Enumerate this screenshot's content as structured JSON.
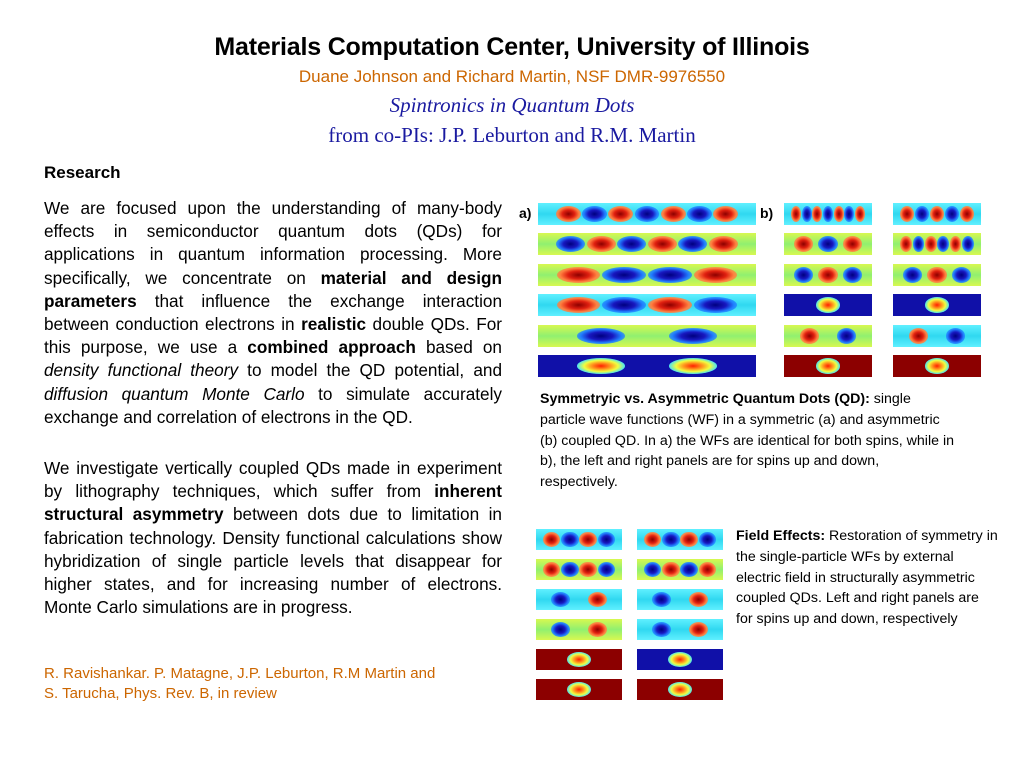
{
  "header": {
    "title": "Materials Computation Center, University of Illinois",
    "authors": "Duane Johnson and Richard Martin, NSF DMR-9976550",
    "subtitle": "Spintronics in Quantum Dots",
    "subtitle2": "from co-PIs: J.P. Leburton and R.M. Martin"
  },
  "research": {
    "heading": "Research",
    "para1": [
      {
        "t": "We are focused upon the understanding of many-body effects in semiconductor quantum dots (QDs) for applications in quantum information processing. More specifically, we concentrate on  "
      },
      {
        "t": "material and design parameters",
        "s": "b"
      },
      {
        "t": " that influence the exchange interaction between conduction electrons in "
      },
      {
        "t": "realistic",
        "s": "b"
      },
      {
        "t": " double QDs. For this purpose, we use a "
      },
      {
        "t": "combined approach",
        "s": "b"
      },
      {
        "t": " based on "
      },
      {
        "t": "density functional theory",
        "s": "i"
      },
      {
        "t": " to model the QD potential, and "
      },
      {
        "t": "diffusion quantum Monte Carlo",
        "s": "i"
      },
      {
        "t": " to simulate accurately exchange and correlation of electrons in the QD."
      }
    ],
    "para2": [
      {
        "t": "We investigate vertically coupled QDs made in experiment by lithography techniques, which suffer from "
      },
      {
        "t": "inherent structural asymmetry",
        "s": "b"
      },
      {
        "t": " between dots due to limitation in fabrication technology. Density functional calculations show hybridization of single particle levels that disappear for higher states, and for increasing number of electrons. Monte Carlo simulations are in progress."
      }
    ]
  },
  "reference": {
    "line1": "R. Ravishankar. P. Matagne, J.P. Leburton, R.M Martin and",
    "line2": "S. Tarucha, Phys. Rev. B, in review"
  },
  "figure1": {
    "label_a": "a)",
    "label_b": "b)",
    "caption_bold": "Symmetryic vs. Asymmetric Quantum Dots (QD):",
    "caption_rest": " single particle wave functions (WF) in a symmetric (a) and asymmetric (b) coupled QD. In a) the WFs are identical for both spins, while in b), the left and right panels are for  spins up and down, respectively."
  },
  "figure2": {
    "caption_bold": "Field Effects:",
    "caption_rest": " Restoration of symmetry in the single-particle WFs by external electric field in structurally asymmetric coupled QDs. Left and right panels are for spins up and down, respectively"
  },
  "colors": {
    "authors": "#cc6600",
    "subtitle": "#1a1aa0",
    "reference": "#cc6600",
    "wf_red": "#e02010",
    "wf_blue": "#1818c0",
    "wf_cyan": "#30d0f0",
    "wf_green": "#a0f060",
    "wf_yellow": "#e8f040",
    "wf_darkred": "#8c0000",
    "wf_darkblue": "#1010a8"
  },
  "chart_data": {
    "type": "heatmap",
    "colormap": "jet",
    "panels": [
      {
        "name": "a",
        "rows": 6,
        "cols": 1
      },
      {
        "name": "b-left",
        "rows": 6,
        "cols": 1
      },
      {
        "name": "b-right",
        "rows": 6,
        "cols": 1
      },
      {
        "name": "field-left",
        "rows": 6,
        "cols": 1
      },
      {
        "name": "field-right",
        "rows": 6,
        "cols": 1
      }
    ],
    "wavefunctions": {
      "a": [
        {
          "bg": "cyan",
          "lobes": [
            "r",
            "b",
            "r",
            "b",
            "r",
            "b",
            "r"
          ]
        },
        {
          "bg": "green",
          "lobes": [
            "b",
            "r",
            "b",
            "r",
            "b",
            "r"
          ]
        },
        {
          "bg": "green",
          "lobes": [
            "r",
            "b",
            "b",
            "r"
          ]
        },
        {
          "bg": "cyan",
          "lobes": [
            "r",
            "b",
            "r",
            "b"
          ]
        },
        {
          "bg": "green",
          "lobes": [
            "b",
            "b"
          ]
        },
        {
          "bg": "blue",
          "lobes": [
            "y",
            "y"
          ]
        }
      ],
      "b-left": [
        {
          "bg": "cyan",
          "lobes": [
            "r",
            "b",
            "r",
            "b",
            "r",
            "b",
            "r"
          ]
        },
        {
          "bg": "green",
          "lobes": [
            "r",
            "b",
            "r"
          ]
        },
        {
          "bg": "green",
          "lobes": [
            "b",
            "r",
            "b"
          ]
        },
        {
          "bg": "blue",
          "lobes": [
            "y"
          ]
        },
        {
          "bg": "green",
          "lobes": [
            "r",
            "b"
          ]
        },
        {
          "bg": "darkred",
          "lobes": [
            "y"
          ]
        }
      ],
      "b-right": [
        {
          "bg": "cyan",
          "lobes": [
            "r",
            "b",
            "r",
            "b",
            "r"
          ]
        },
        {
          "bg": "green",
          "lobes": [
            "r",
            "b",
            "r",
            "b",
            "r",
            "b"
          ]
        },
        {
          "bg": "green",
          "lobes": [
            "b",
            "r",
            "b"
          ]
        },
        {
          "bg": "blue",
          "lobes": [
            "y"
          ]
        },
        {
          "bg": "cyan",
          "lobes": [
            "r",
            "b"
          ]
        },
        {
          "bg": "darkred",
          "lobes": [
            "y"
          ]
        }
      ],
      "field-left": [
        {
          "bg": "cyan",
          "lobes": [
            "r",
            "b",
            "r",
            "b"
          ]
        },
        {
          "bg": "green",
          "lobes": [
            "r",
            "b",
            "r",
            "b"
          ]
        },
        {
          "bg": "cyan",
          "lobes": [
            "b",
            "r"
          ]
        },
        {
          "bg": "green",
          "lobes": [
            "b",
            "r"
          ]
        },
        {
          "bg": "darkred",
          "lobes": [
            "y"
          ]
        },
        {
          "bg": "darkred",
          "lobes": [
            "y"
          ]
        }
      ],
      "field-right": [
        {
          "bg": "cyan",
          "lobes": [
            "r",
            "b",
            "r",
            "b"
          ]
        },
        {
          "bg": "green",
          "lobes": [
            "b",
            "r",
            "b",
            "r"
          ]
        },
        {
          "bg": "cyan",
          "lobes": [
            "b",
            "r"
          ]
        },
        {
          "bg": "cyan",
          "lobes": [
            "b",
            "r"
          ]
        },
        {
          "bg": "blue",
          "lobes": [
            "y"
          ]
        },
        {
          "bg": "darkred",
          "lobes": [
            "y"
          ]
        }
      ]
    }
  }
}
